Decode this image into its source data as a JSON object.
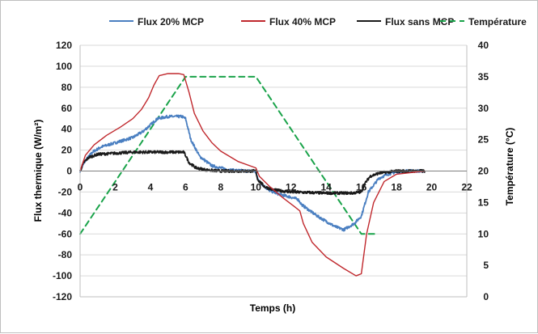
{
  "chart_data": {
    "type": "line",
    "xlabel": "Temps (h)",
    "ylabel": "Flux thermique (W/m²)",
    "y2label": "Température (°C)",
    "xlim": [
      0,
      22
    ],
    "ylim": [
      -120,
      120
    ],
    "y2lim": [
      0,
      40
    ],
    "x_ticks": [
      0,
      2,
      4,
      6,
      8,
      10,
      12,
      14,
      16,
      18,
      20,
      22
    ],
    "y_ticks": [
      -120,
      -100,
      -80,
      -60,
      -40,
      -20,
      0,
      20,
      40,
      60,
      80,
      100,
      120
    ],
    "y2_ticks": [
      0,
      5,
      10,
      15,
      20,
      25,
      30,
      35,
      40
    ],
    "grid": "horizontal",
    "legend_position": "top",
    "series": [
      {
        "name": "Flux 20% MCP",
        "axis": "left",
        "color": "#4a7fc1",
        "noisy": true,
        "x": [
          0,
          0.3,
          0.7,
          1.2,
          2,
          3,
          3.6,
          4,
          4.4,
          5,
          5.8,
          6,
          6.3,
          6.8,
          7.5,
          8.5,
          9.5,
          9.9,
          10,
          10.2,
          10.7,
          11.3,
          12,
          12.4,
          12.6,
          13,
          13.5,
          14,
          14.5,
          15,
          15.6,
          16,
          16.4,
          17,
          17.5,
          18,
          18.5,
          19.6
        ],
        "values": [
          0,
          10,
          18,
          23,
          27,
          32,
          38,
          44,
          50,
          52,
          52,
          50,
          30,
          14,
          5,
          1,
          0,
          0,
          -2,
          -10,
          -18,
          -22,
          -25,
          -27,
          -32,
          -37,
          -43,
          -48,
          -53,
          -56,
          -50,
          -43,
          -20,
          -7,
          -3,
          -1,
          0,
          0
        ]
      },
      {
        "name": "Flux 40% MCP",
        "axis": "left",
        "color": "#c0282d",
        "noisy": false,
        "x": [
          0,
          0.3,
          0.8,
          1.5,
          2.3,
          3,
          3.5,
          3.9,
          4.2,
          4.5,
          5,
          5.6,
          5.9,
          6.2,
          6.5,
          7,
          7.5,
          8,
          9,
          10,
          10.2,
          10.8,
          11.5,
          12.2,
          12.5,
          12.7,
          13.2,
          14,
          15,
          15.7,
          16,
          16.3,
          16.7,
          17.3,
          18,
          19.6
        ],
        "values": [
          0,
          15,
          25,
          34,
          42,
          50,
          59,
          70,
          82,
          91,
          93,
          93,
          92,
          75,
          55,
          38,
          27,
          19,
          9,
          3,
          -5,
          -15,
          -25,
          -34,
          -38,
          -50,
          -68,
          -82,
          -93,
          -100,
          -98,
          -60,
          -30,
          -10,
          -3,
          0
        ]
      },
      {
        "name": "Flux sans MCP",
        "axis": "left",
        "color": "#1a1a1a",
        "noisy": true,
        "x": [
          0,
          0.2,
          0.5,
          1,
          2,
          3,
          4,
          5,
          5.9,
          6,
          6.2,
          6.6,
          7.2,
          8,
          9,
          10,
          10.1,
          10.5,
          11,
          12,
          14,
          15.5,
          16,
          16.2,
          16.5,
          17,
          18,
          19.6
        ],
        "values": [
          0,
          8,
          13,
          16,
          17,
          18,
          18,
          18,
          18,
          15,
          8,
          3,
          1,
          0,
          0,
          0,
          -8,
          -15,
          -18,
          -20,
          -21,
          -21,
          -20,
          -12,
          -5,
          -2,
          0,
          0
        ]
      },
      {
        "name": "Température",
        "axis": "right",
        "color": "#1aa34a",
        "dashed": true,
        "x": [
          0,
          6,
          10,
          16,
          16.9
        ],
        "values": [
          10,
          35,
          35,
          10,
          10
        ]
      }
    ]
  }
}
